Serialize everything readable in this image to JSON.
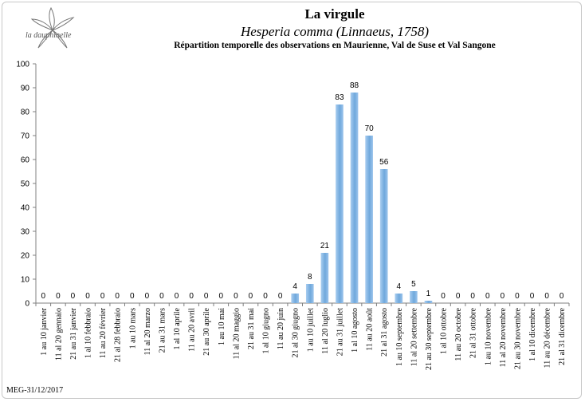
{
  "header": {
    "logo_text": "la dauphinelle",
    "title": "La virgule",
    "subtitle": "Hesperia comma (Linnaeus, 1758)",
    "description": "Répartition temporelle des observations en Maurienne, Val de Suse et Val Sangone"
  },
  "footer": {
    "credit": "MEG-31/12/2017"
  },
  "chart_data": {
    "type": "bar",
    "title": "La virgule",
    "ylim": [
      0,
      100
    ],
    "yticks": [
      0,
      10,
      20,
      30,
      40,
      50,
      60,
      70,
      80,
      90,
      100
    ],
    "grid": false,
    "bar_color": "#6fa8dc",
    "categories": [
      "1 au 10 janvier",
      "11 al 20 gennaio",
      "21 au 31 janvier",
      "1 al 10 febbraio",
      "11 au 20 février",
      "21 al 28 febbraio",
      "1 au 10 mars",
      "11 al 20 marzo",
      "21 au 31 mars",
      "1 al 10 aprile",
      "11 au 20 avril",
      "21 au 30 aprile",
      "1 au 10 mai",
      "11 al 20 maggio",
      "21 au 31 mai",
      "1 al 10 giugno",
      "11 au 20 juin",
      "21 al 30 giugno",
      "1 au 10 juillet",
      "11 al 20 luglio",
      "21 au 31 juillet",
      "1 al 10 agosto",
      "11 au 20 août",
      "21 al 31 agosto",
      "1 au 10 septembre",
      "11 al 20 settembre",
      "21 au 30 septembre",
      "1 al 10 ottobre",
      "11 au 20 octobre",
      "21 al 31 ottobre",
      "1 au 10 novembre",
      "11 al 20 novembre",
      "21 au 30 novembre",
      "1 al 10 dicembre",
      "11 au 20 décembre",
      "21 al 31 dicembre"
    ],
    "values": [
      0,
      0,
      0,
      0,
      0,
      0,
      0,
      0,
      0,
      0,
      0,
      0,
      0,
      0,
      0,
      0,
      0,
      4,
      8,
      21,
      83,
      88,
      70,
      56,
      4,
      5,
      1,
      0,
      0,
      0,
      0,
      0,
      0,
      0,
      0,
      0
    ]
  }
}
